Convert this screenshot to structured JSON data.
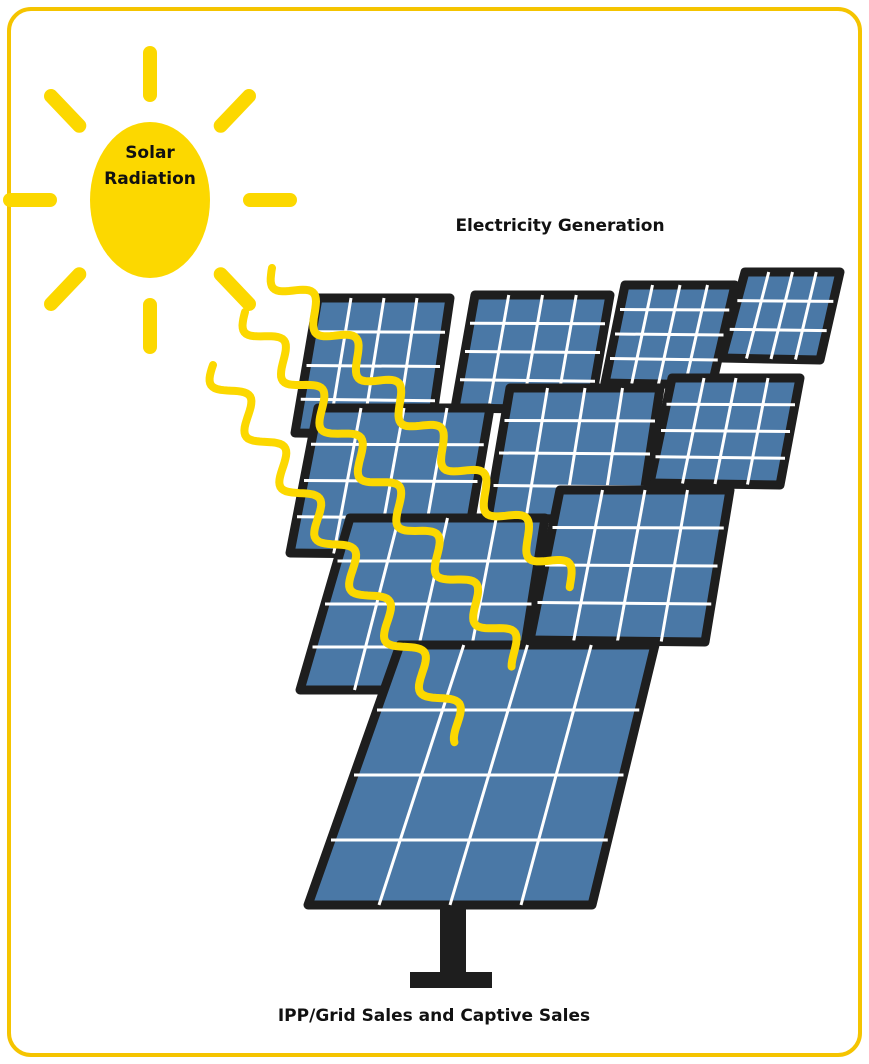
{
  "nodes": [
    {
      "label": "Solar Radiation"
    },
    {
      "label": "Electricity Generation"
    },
    {
      "label": "IPP/Grid Sales and Captive Sales"
    }
  ]
}
